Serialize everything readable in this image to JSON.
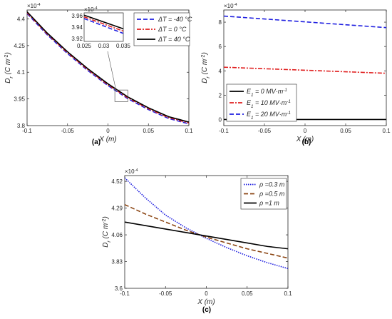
{
  "chart_data": [
    {
      "id": "a",
      "type": "line",
      "caption": "(a)",
      "multiplier": "×10^-4",
      "xlabel": "X (m)",
      "ylabel": "Dr (C m^-2)",
      "xlim": [
        -0.1,
        0.1
      ],
      "ylim": [
        3.8,
        4.45
      ],
      "xticks": [
        -0.1,
        -0.05,
        0,
        0.05,
        0.1
      ],
      "xtick_labels": [
        "-0.1",
        "-0.05",
        "0",
        "0.05",
        "0.1"
      ],
      "yticks": [
        3.8,
        3.95,
        4.1,
        4.25,
        4.4
      ],
      "ytick_labels": [
        "3.8",
        "3.95",
        "4.1",
        "4.25",
        "4.4"
      ],
      "legend_position": "top-right",
      "series": [
        {
          "name": "ΔT = -40 °C",
          "color": "#1f1fe0",
          "dash": "6,3",
          "x": [
            -0.1,
            -0.075,
            -0.05,
            -0.025,
            0,
            0.025,
            0.05,
            0.075,
            0.1
          ],
          "y": [
            4.43,
            4.31,
            4.205,
            4.11,
            4.025,
            3.95,
            3.89,
            3.84,
            3.81
          ]
        },
        {
          "name": "ΔT =  0 °C",
          "color": "#e01f1f",
          "dash": "6,2,2,2",
          "x": [
            -0.1,
            -0.075,
            -0.05,
            -0.025,
            0,
            0.025,
            0.05,
            0.075,
            0.1
          ],
          "y": [
            4.435,
            4.315,
            4.21,
            4.115,
            4.03,
            3.955,
            3.895,
            3.845,
            3.815
          ]
        },
        {
          "name": "ΔT = 40 °C",
          "color": "#000000",
          "dash": "",
          "x": [
            -0.1,
            -0.075,
            -0.05,
            -0.025,
            0,
            0.025,
            0.05,
            0.075,
            0.1
          ],
          "y": [
            4.44,
            4.32,
            4.215,
            4.12,
            4.035,
            3.96,
            3.9,
            3.85,
            3.82
          ]
        }
      ],
      "inset": {
        "multiplier": "×10^-4",
        "xlim": [
          0.025,
          0.035
        ],
        "ylim": [
          3.915,
          3.965
        ],
        "xticks": [
          0.025,
          0.03,
          0.035
        ],
        "xtick_labels": [
          "0.025",
          "0.03",
          "0.035"
        ],
        "yticks": [
          3.92,
          3.94,
          3.96
        ],
        "ytick_labels": [
          "3.92",
          "3.94",
          "3.96"
        ],
        "series": [
          {
            "color": "#1f1fe0",
            "dash": "6,3",
            "x": [
              0.025,
              0.035
            ],
            "y": [
              3.955,
              3.929
            ]
          },
          {
            "color": "#e01f1f",
            "dash": "6,2,2,2",
            "x": [
              0.025,
              0.035
            ],
            "y": [
              3.958,
              3.933
            ]
          },
          {
            "color": "#000000",
            "dash": "",
            "x": [
              0.025,
              0.035
            ],
            "y": [
              3.961,
              3.937
            ]
          }
        ]
      }
    },
    {
      "id": "b",
      "type": "line",
      "caption": "(b)",
      "multiplier": "×10^-4",
      "xlabel": "X (m)",
      "ylabel": "Dr (C m^-2)",
      "xlim": [
        -0.1,
        0.1
      ],
      "ylim": [
        -0.5,
        9
      ],
      "xticks": [
        -0.1,
        -0.05,
        0,
        0.05,
        0.1
      ],
      "xtick_labels": [
        "-0.1",
        "-0.05",
        "0",
        "0.05",
        "0.1"
      ],
      "yticks": [
        0,
        2,
        4,
        6,
        8
      ],
      "ytick_labels": [
        "0",
        "2",
        "4",
        "6",
        "8"
      ],
      "legend_position": "bottom-left",
      "series": [
        {
          "name": "E1 = 0 MV·m^-1",
          "color": "#000000",
          "dash": "",
          "x": [
            -0.1,
            0.1
          ],
          "y": [
            0,
            0
          ]
        },
        {
          "name": "E1 = 10 MV·m^-1",
          "color": "#e01f1f",
          "dash": "6,2,2,2",
          "x": [
            -0.1,
            0.1
          ],
          "y": [
            4.3,
            3.8
          ]
        },
        {
          "name": "E1 = 20 MV·m^-1",
          "color": "#1f1fe0",
          "dash": "6,3",
          "x": [
            -0.1,
            0.1
          ],
          "y": [
            8.5,
            7.55
          ]
        }
      ]
    },
    {
      "id": "c",
      "type": "line",
      "caption": "(c)",
      "multiplier": "×10^-4",
      "xlabel": "X (m)",
      "ylabel": "Dr (C m^-2)",
      "xlim": [
        -0.1,
        0.1
      ],
      "ylim": [
        3.6,
        4.57
      ],
      "xticks": [
        -0.1,
        -0.05,
        0,
        0.05,
        0.1
      ],
      "xtick_labels": [
        "-0.1",
        "-0.05",
        "0",
        "0.05",
        "0.1"
      ],
      "yticks": [
        3.6,
        3.83,
        4.06,
        4.29,
        4.52
      ],
      "ytick_labels": [
        "3.6",
        "3.83",
        "4.06",
        "4.29",
        "4.52"
      ],
      "legend_position": "top-right",
      "series": [
        {
          "name": "ρ =0.3 m",
          "color": "#1f1fe0",
          "dash": "1.5,1.5",
          "x": [
            -0.1,
            -0.075,
            -0.05,
            -0.025,
            0,
            0.025,
            0.05,
            0.075,
            0.1
          ],
          "y": [
            4.55,
            4.38,
            4.23,
            4.12,
            4.03,
            3.95,
            3.88,
            3.82,
            3.77
          ]
        },
        {
          "name": "ρ =0.5 m",
          "color": "#8b4513",
          "dash": "6,3",
          "x": [
            -0.1,
            -0.075,
            -0.05,
            -0.025,
            0,
            0.025,
            0.05,
            0.075,
            0.1
          ],
          "y": [
            4.32,
            4.24,
            4.17,
            4.1,
            4.04,
            3.99,
            3.94,
            3.9,
            3.86
          ]
        },
        {
          "name": "ρ =1   m",
          "color": "#000000",
          "dash": "",
          "x": [
            -0.1,
            -0.075,
            -0.05,
            -0.025,
            0,
            0.025,
            0.05,
            0.075,
            0.1
          ],
          "y": [
            4.17,
            4.14,
            4.11,
            4.08,
            4.05,
            4.02,
            3.99,
            3.96,
            3.94
          ]
        }
      ]
    }
  ]
}
